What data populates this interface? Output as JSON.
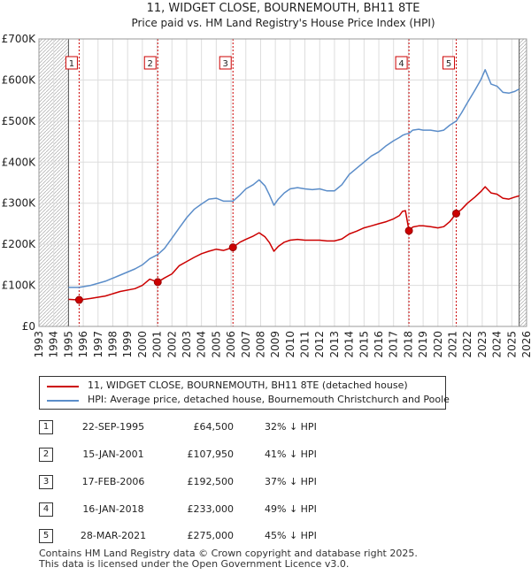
{
  "chart_data": {
    "type": "line",
    "title": "11, WIDGET CLOSE, BOURNEMOUTH, BH11 8TE",
    "subtitle": "Price paid vs. HM Land Registry's House Price Index (HPI)",
    "xlim": [
      1993,
      2026
    ],
    "ylim": [
      0,
      700000
    ],
    "x_ticks": [
      1993,
      1994,
      1995,
      1996,
      1997,
      1998,
      1999,
      2000,
      2001,
      2002,
      2003,
      2004,
      2005,
      2006,
      2007,
      2008,
      2009,
      2010,
      2011,
      2012,
      2013,
      2014,
      2015,
      2016,
      2017,
      2018,
      2019,
      2020,
      2021,
      2022,
      2023,
      2024,
      2025,
      2026
    ],
    "y_ticks": [
      {
        "value": 0,
        "label": "£0"
      },
      {
        "value": 100000,
        "label": "£100K"
      },
      {
        "value": 200000,
        "label": "£200K"
      },
      {
        "value": 300000,
        "label": "£300K"
      },
      {
        "value": 400000,
        "label": "£400K"
      },
      {
        "value": 500000,
        "label": "£500K"
      },
      {
        "value": 600000,
        "label": "£600K"
      },
      {
        "value": 700000,
        "label": "£700K"
      }
    ],
    "grid": true,
    "series": [
      {
        "name": "11, WIDGET CLOSE, BOURNEMOUTH, BH11 8TE (detached house)",
        "color": "#cc0000",
        "x": [
          1995.0,
          1995.72,
          1996.5,
          1997.5,
          1998.5,
          1999.5,
          2000.0,
          2000.5,
          2001.04,
          2001.5,
          2002.0,
          2002.5,
          2003.0,
          2003.5,
          2004.0,
          2004.5,
          2005.0,
          2005.5,
          2006.13,
          2006.6,
          2007.0,
          2007.5,
          2007.9,
          2008.3,
          2008.6,
          2008.9,
          2009.2,
          2009.6,
          2010.0,
          2010.5,
          2011.0,
          2011.5,
          2012.0,
          2012.5,
          2013.0,
          2013.5,
          2014.0,
          2014.5,
          2015.0,
          2015.5,
          2016.0,
          2016.5,
          2017.0,
          2017.4,
          2017.6,
          2017.8,
          2018.04,
          2018.3,
          2018.7,
          2019.0,
          2019.5,
          2020.0,
          2020.4,
          2020.8,
          2021.24,
          2021.6,
          2022.0,
          2022.5,
          2022.9,
          2023.2,
          2023.6,
          2024.0,
          2024.4,
          2024.8,
          2025.2,
          2025.5
        ],
        "values": [
          66000,
          64500,
          68000,
          74000,
          85000,
          92000,
          100000,
          115000,
          107950,
          118000,
          128000,
          148000,
          158000,
          168000,
          177000,
          183000,
          188000,
          185000,
          192500,
          205000,
          212000,
          220000,
          228000,
          218000,
          204000,
          183000,
          195000,
          205000,
          210000,
          212000,
          210000,
          210000,
          210000,
          208000,
          208000,
          213000,
          225000,
          232000,
          240000,
          245000,
          250000,
          255000,
          262000,
          270000,
          280000,
          282000,
          233000,
          242000,
          245000,
          245000,
          243000,
          240000,
          243000,
          255000,
          275000,
          285000,
          300000,
          315000,
          328000,
          340000,
          325000,
          322000,
          312000,
          310000,
          315000,
          318000
        ]
      },
      {
        "name": "HPI: Average price, detached house, Bournemouth Christchurch and Poole",
        "color": "#5b8dc9",
        "x": [
          1995.0,
          1995.72,
          1996.5,
          1997.5,
          1998.5,
          1999.5,
          2000.0,
          2000.5,
          2001.04,
          2001.5,
          2002.0,
          2002.5,
          2003.0,
          2003.5,
          2004.0,
          2004.5,
          2005.0,
          2005.5,
          2006.13,
          2006.6,
          2007.0,
          2007.5,
          2007.9,
          2008.3,
          2008.6,
          2008.9,
          2009.2,
          2009.6,
          2010.0,
          2010.5,
          2011.0,
          2011.5,
          2012.0,
          2012.5,
          2013.0,
          2013.5,
          2014.0,
          2014.5,
          2015.0,
          2015.5,
          2016.0,
          2016.5,
          2017.0,
          2017.4,
          2017.6,
          2017.8,
          2018.04,
          2018.3,
          2018.7,
          2019.0,
          2019.5,
          2020.0,
          2020.4,
          2020.8,
          2021.24,
          2021.6,
          2022.0,
          2022.5,
          2022.9,
          2023.2,
          2023.6,
          2024.0,
          2024.4,
          2024.8,
          2025.2,
          2025.5
        ],
        "values": [
          95000,
          95000,
          100000,
          110000,
          125000,
          140000,
          150000,
          165000,
          175000,
          190000,
          215000,
          240000,
          265000,
          285000,
          298000,
          310000,
          312000,
          305000,
          305000,
          320000,
          335000,
          345000,
          357000,
          342000,
          320000,
          295000,
          310000,
          325000,
          335000,
          338000,
          335000,
          333000,
          335000,
          330000,
          330000,
          345000,
          370000,
          385000,
          400000,
          415000,
          425000,
          440000,
          452000,
          460000,
          465000,
          468000,
          470000,
          478000,
          480000,
          478000,
          478000,
          475000,
          478000,
          490000,
          500000,
          520000,
          545000,
          575000,
          600000,
          625000,
          590000,
          585000,
          570000,
          568000,
          572000,
          578000
        ]
      }
    ],
    "sales": [
      {
        "n": "1",
        "x": 1995.72,
        "value": 64500,
        "date": "22-SEP-1995",
        "price": "£64,500",
        "hpi": "32% ↓ HPI"
      },
      {
        "n": "2",
        "x": 2001.04,
        "value": 107950,
        "date": "15-JAN-2001",
        "price": "£107,950",
        "hpi": "41% ↓ HPI"
      },
      {
        "n": "3",
        "x": 2006.13,
        "value": 192500,
        "date": "17-FEB-2006",
        "price": "£192,500",
        "hpi": "37% ↓ HPI"
      },
      {
        "n": "4",
        "x": 2018.04,
        "value": 233000,
        "date": "16-JAN-2018",
        "price": "£233,000",
        "hpi": "49% ↓ HPI"
      },
      {
        "n": "5",
        "x": 2021.24,
        "value": 275000,
        "date": "28-MAR-2021",
        "price": "£275,000",
        "hpi": "45% ↓ HPI"
      }
    ],
    "hatch_before": 1995.0,
    "hatch_after": 2025.5
  },
  "legend": {
    "property_label": "11, WIDGET CLOSE, BOURNEMOUTH, BH11 8TE (detached house)",
    "hpi_label": "HPI: Average price, detached house, Bournemouth Christchurch and Poole"
  },
  "footer": {
    "line1": "Contains HM Land Registry data © Crown copyright and database right 2025.",
    "line2": "This data is licensed under the Open Government Licence v3.0."
  }
}
